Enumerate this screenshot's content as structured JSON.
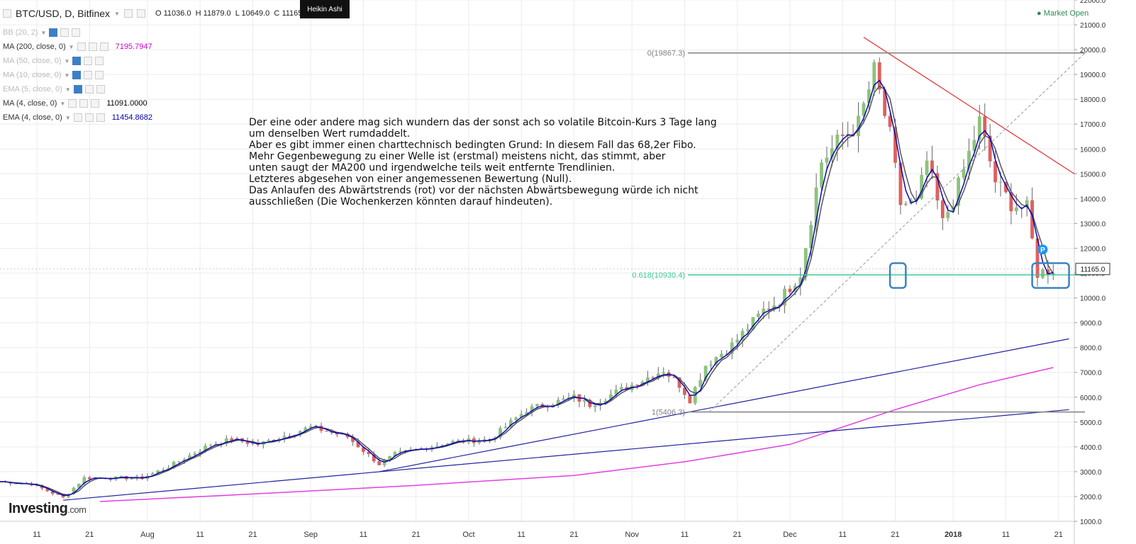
{
  "header": {
    "symbol": "BTC/USD, D, Bitfinex",
    "o_label": "O",
    "o": "11036.0",
    "h_label": "H",
    "h": "11879.0",
    "l_label": "L",
    "l": "10649.0",
    "c_label": "C",
    "c": "11165.0",
    "chart_style": "Heikin Ashi",
    "market_status": "Market Open"
  },
  "indicators": [
    {
      "label": "BB (20, 2)",
      "value": "",
      "dim": true,
      "eye": true
    },
    {
      "label": "MA (200, close, 0)",
      "value": "7195.7947",
      "dim": false,
      "eye": false,
      "color": "#cc00cc"
    },
    {
      "label": "MA (50, close, 0)",
      "value": "",
      "dim": true,
      "eye": true
    },
    {
      "label": "MA (10, close, 0)",
      "value": "",
      "dim": true,
      "eye": true
    },
    {
      "label": "EMA (5, close, 0)",
      "value": "",
      "dim": true,
      "eye": true
    },
    {
      "label": "MA (4, close, 0)",
      "value": "11091.0000",
      "dim": false,
      "eye": false,
      "color": "#000000"
    },
    {
      "label": "EMA (4, close, 0)",
      "value": "11454.8682",
      "dim": false,
      "eye": false,
      "color": "#0000aa"
    }
  ],
  "annotation_text": "Der eine oder andere mag sich wundern das der sonst ach so volatile Bitcoin-Kurs 3 Tage lang\num denselben Wert rumdaddelt.\nAber es gibt immer einen charttechnisch bedingten Grund: In diesem Fall das 68,2er Fibo.\nMehr Gegenbewegung zu einer Welle ist (erstmal) meistens nicht, das stimmt, aber\nunten saugt der MA200 und irgendwelche teils weit entfernte Trendlinien.\nLetzteres abgesehen von einer angemessenen Bewertung (Null).\nDas Anlaufen des Abwärtstrends (rot) vor der nächsten Abwärtsbewegung würde ich nicht\nausschließen (Die Wochenkerzen könnten darauf hindeuten).",
  "logo": {
    "main": "Investing",
    "suffix": ".com"
  },
  "chart_data": {
    "type": "candlestick",
    "title": "BTC/USD, D, Bitfinex",
    "xlabel": "",
    "ylabel": "",
    "ylim": [
      1000,
      22000
    ],
    "y_ticks": [
      1000,
      2000,
      3000,
      4000,
      5000,
      6000,
      7000,
      8000,
      9000,
      10000,
      11000,
      12000,
      13000,
      14000,
      15000,
      16000,
      17000,
      18000,
      19000,
      20000,
      21000,
      22000
    ],
    "y_tick_labels": [
      "1000.0",
      "2000.0",
      "3000.0",
      "4000.0",
      "5000.0",
      "6000.0",
      "7000.0",
      "8000.0",
      "9000.0",
      "10000.0",
      "11000.0",
      "12000.0",
      "13000.0",
      "14000.0",
      "15000.0",
      "16000.0",
      "17000.0",
      "18000.0",
      "19000.0",
      "20000.0",
      "21000.0",
      "22000.0"
    ],
    "x_range": [
      "2017-07-04",
      "2018-01-24"
    ],
    "x_ticks": [
      {
        "date": "2017-07-11",
        "label": "11"
      },
      {
        "date": "2017-07-21",
        "label": "21"
      },
      {
        "date": "2017-08-01",
        "label": "Aug"
      },
      {
        "date": "2017-08-11",
        "label": "11"
      },
      {
        "date": "2017-08-21",
        "label": "21"
      },
      {
        "date": "2017-09-01",
        "label": "Sep"
      },
      {
        "date": "2017-09-11",
        "label": "11"
      },
      {
        "date": "2017-09-21",
        "label": "21"
      },
      {
        "date": "2017-10-01",
        "label": "Oct"
      },
      {
        "date": "2017-10-11",
        "label": "11"
      },
      {
        "date": "2017-10-21",
        "label": "21"
      },
      {
        "date": "2017-11-01",
        "label": "Nov"
      },
      {
        "date": "2017-11-11",
        "label": "11"
      },
      {
        "date": "2017-11-21",
        "label": "21"
      },
      {
        "date": "2017-12-01",
        "label": "Dec"
      },
      {
        "date": "2017-12-11",
        "label": "11"
      },
      {
        "date": "2017-12-21",
        "label": "21"
      },
      {
        "date": "2018-01-01",
        "label": "2018"
      },
      {
        "date": "2018-01-11",
        "label": "11"
      },
      {
        "date": "2018-01-21",
        "label": "21"
      }
    ],
    "grid": true,
    "current_price": {
      "value": 11165.0,
      "label": "11165.0"
    },
    "price_path": [
      [
        "2017-07-04",
        2600
      ],
      [
        "2017-07-10",
        2500
      ],
      [
        "2017-07-16",
        1950
      ],
      [
        "2017-07-20",
        2750
      ],
      [
        "2017-07-31",
        2750
      ],
      [
        "2017-08-05",
        3200
      ],
      [
        "2017-08-13",
        4100
      ],
      [
        "2017-08-17",
        4300
      ],
      [
        "2017-08-22",
        4100
      ],
      [
        "2017-09-01",
        4800
      ],
      [
        "2017-09-08",
        4400
      ],
      [
        "2017-09-14",
        3300
      ],
      [
        "2017-09-17",
        3700
      ],
      [
        "2017-09-28",
        4200
      ],
      [
        "2017-10-05",
        4300
      ],
      [
        "2017-10-12",
        5500
      ],
      [
        "2017-10-21",
        6000
      ],
      [
        "2017-10-24",
        5700
      ],
      [
        "2017-10-31",
        6400
      ],
      [
        "2017-11-07",
        7100
      ],
      [
        "2017-11-10",
        6500
      ],
      [
        "2017-11-12",
        5900
      ],
      [
        "2017-11-15",
        7300
      ],
      [
        "2017-11-20",
        8100
      ],
      [
        "2017-11-26",
        9500
      ],
      [
        "2017-11-29",
        9900
      ],
      [
        "2017-12-03",
        11000
      ],
      [
        "2017-12-07",
        15500
      ],
      [
        "2017-12-11",
        16500
      ],
      [
        "2017-12-14",
        17000
      ],
      [
        "2017-12-17",
        19100
      ],
      [
        "2017-12-20",
        16500
      ],
      [
        "2017-12-22",
        13800
      ],
      [
        "2017-12-25",
        13800
      ],
      [
        "2017-12-27",
        15500
      ],
      [
        "2017-12-30",
        13000
      ],
      [
        "2018-01-02",
        14500
      ],
      [
        "2018-01-06",
        17100
      ],
      [
        "2018-01-09",
        14700
      ],
      [
        "2018-01-12",
        13800
      ],
      [
        "2018-01-15",
        13600
      ],
      [
        "2018-01-17",
        11000
      ],
      [
        "2018-01-20",
        11165
      ]
    ],
    "ma200_path": [
      [
        "2017-07-23",
        1800
      ],
      [
        "2017-08-21",
        2100
      ],
      [
        "2017-09-21",
        2450
      ],
      [
        "2017-10-21",
        2850
      ],
      [
        "2017-11-11",
        3400
      ],
      [
        "2017-12-01",
        4100
      ],
      [
        "2017-12-21",
        5500
      ],
      [
        "2018-01-06",
        6500
      ],
      [
        "2018-01-20",
        7195.7947
      ]
    ],
    "fibonacci": [
      {
        "ratio": "0",
        "label": "0(19867.3)",
        "price": 19867.3,
        "color": "#808080"
      },
      {
        "ratio": "0.618",
        "label": "0.618(10930.4)",
        "price": 10930.4,
        "color": "#3cc89a"
      },
      {
        "ratio": "1",
        "label": "1(5406.3)",
        "price": 5406.3,
        "color": "#808080"
      }
    ],
    "trend_lines": [
      {
        "color": "#e03030",
        "from": [
          "2017-12-15",
          20500
        ],
        "to": [
          "2018-01-24",
          15000
        ]
      },
      {
        "color": "#2020a0",
        "from": [
          "2017-07-16",
          1850
        ],
        "to": [
          "2018-01-23",
          5500
        ]
      },
      {
        "color": "#2020a0",
        "from": [
          "2017-09-14",
          3000
        ],
        "to": [
          "2018-01-23",
          8350
        ]
      }
    ],
    "highlight_boxes": [
      {
        "date_from": "2017-12-20",
        "date_to": "2017-12-23",
        "low": 10400,
        "high": 11400
      },
      {
        "date_from": "2018-01-16",
        "date_to": "2018-01-23",
        "low": 10400,
        "high": 11400
      }
    ],
    "marker": {
      "date": "2018-01-18",
      "price": 11950,
      "label": "P"
    }
  }
}
